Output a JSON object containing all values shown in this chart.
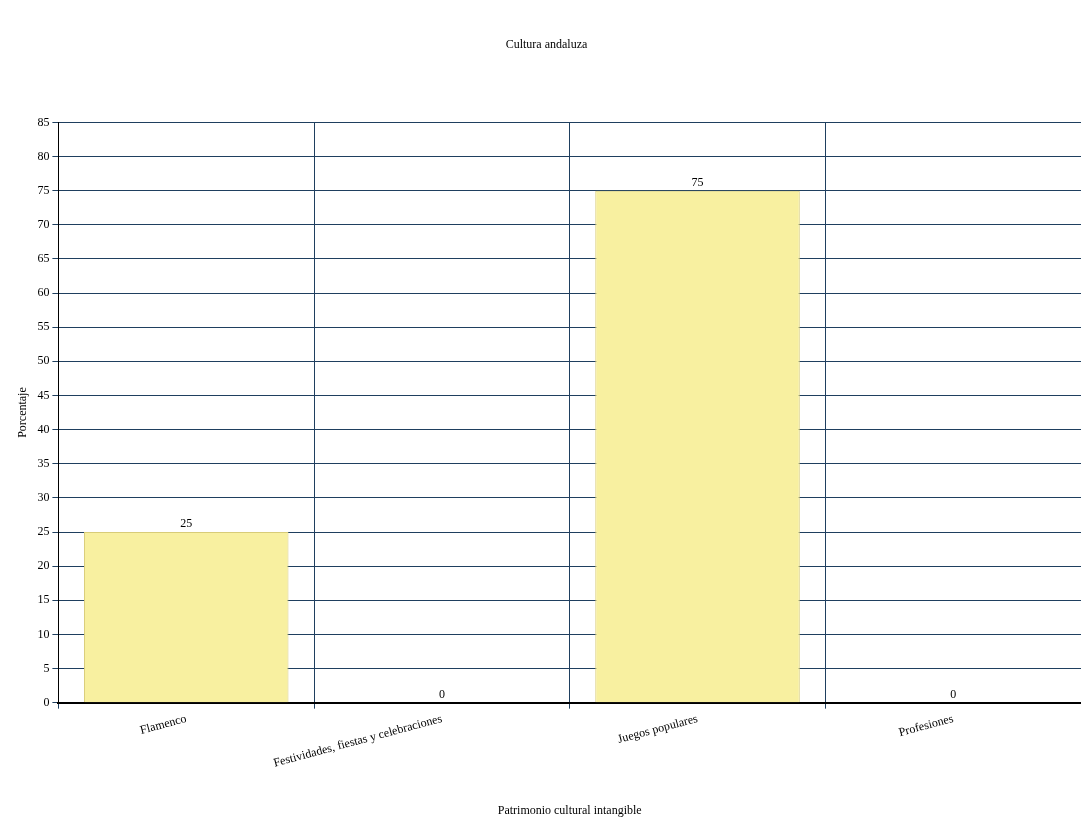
{
  "chart_data": {
    "type": "bar",
    "title": "Cultura andaluza",
    "xlabel": "Patrimonio cultural intangible",
    "ylabel": "Porcentaje",
    "categories": [
      "Flamenco",
      "Festividades, fiestas y celebraciones",
      "Juegos populares",
      "Profesiones"
    ],
    "values": [
      25,
      0,
      75,
      0
    ],
    "color": "#f8f0a0",
    "ylim": [
      0,
      85
    ],
    "yticks": [
      0,
      5,
      10,
      15,
      20,
      25,
      30,
      35,
      40,
      45,
      50,
      55,
      60,
      65,
      70,
      75,
      80,
      85
    ],
    "grid": true,
    "data_labels": true,
    "legend": false
  }
}
